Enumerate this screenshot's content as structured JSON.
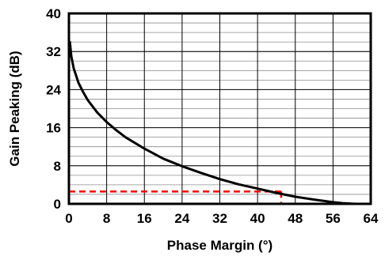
{
  "chart_data": {
    "type": "line",
    "title": "",
    "xlabel": "Phase Margin (°)",
    "ylabel": "Gain Peaking (dB)",
    "xlim": [
      0,
      64
    ],
    "ylim": [
      0,
      40
    ],
    "x_ticks": [
      0,
      8,
      16,
      24,
      32,
      40,
      48,
      56,
      64
    ],
    "y_ticks": [
      0,
      8,
      16,
      24,
      32,
      40
    ],
    "grid": {
      "vertical": true,
      "horizontal_minor": true
    },
    "legend": "none",
    "series": [
      {
        "color": "#000000",
        "x": [
          0.2,
          0.5,
          1,
          2,
          3,
          4,
          6,
          8,
          10,
          12,
          16,
          20,
          24,
          28,
          32,
          36,
          40,
          44,
          48,
          52,
          56,
          58,
          60,
          61
        ],
        "y": [
          34,
          31,
          28.5,
          25.5,
          23.5,
          21.8,
          19.2,
          17.2,
          15.5,
          14,
          11.6,
          9.5,
          7.9,
          6.5,
          5.2,
          4.1,
          3.2,
          2.3,
          1.5,
          0.9,
          0.35,
          0.15,
          0.03,
          0
        ]
      }
    ],
    "annotations": [
      {
        "style": "dashed",
        "color": "#ff0000",
        "marker_x": 45,
        "marker_y": 2.6
      }
    ]
  }
}
